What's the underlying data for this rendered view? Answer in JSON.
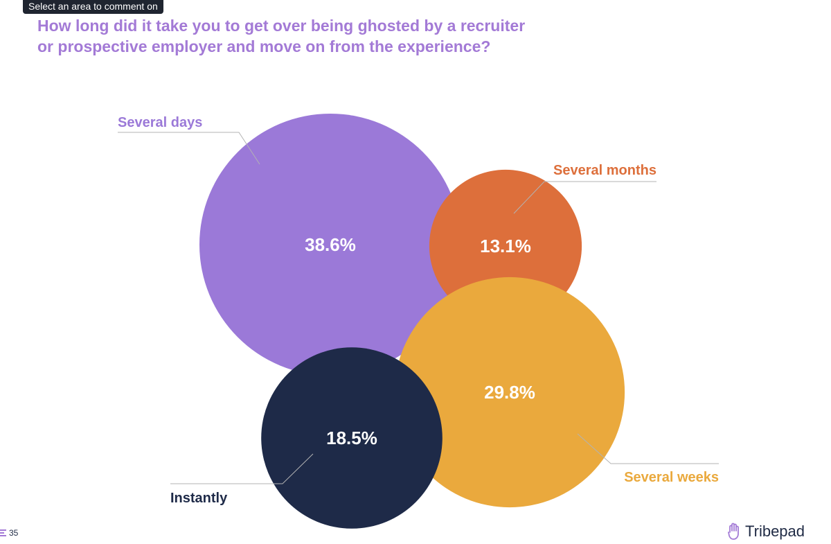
{
  "tooltip": "Select an area to comment on",
  "title_line1": "How long did it take you to get over being ghosted by a recruiter",
  "title_line2": "or prospective employer and move on from the experience?",
  "page_number": "35",
  "brand": "Tribepad",
  "colors": {
    "title": "#a37ad6",
    "several_days": "#9b79d8",
    "several_months": "#dd6f3b",
    "several_weeks": "#eaa93d",
    "instantly": "#1e2a48",
    "leader_line": "#b3b3b3"
  },
  "chart_data": {
    "type": "bubble",
    "title": "How long did it take you to get over being ghosted by a recruiter or prospective employer and move on from the experience?",
    "unit": "%",
    "categories": [
      "Several days",
      "Several months",
      "Several weeks",
      "Instantly"
    ],
    "values": [
      38.6,
      13.1,
      29.8,
      18.5
    ],
    "value_labels": [
      "38.6%",
      "13.1%",
      "29.8%",
      "18.5%"
    ]
  }
}
